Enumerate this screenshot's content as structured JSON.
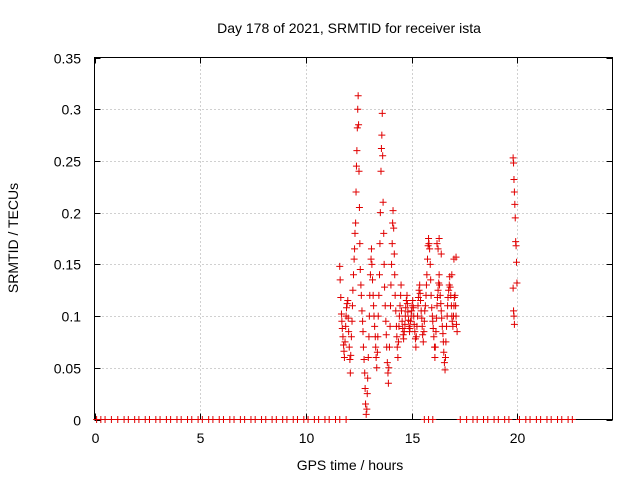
{
  "chart_data": {
    "type": "scatter",
    "title": "Day 178 of 2021, SRMTID for receiver ista",
    "xlabel": "GPS time / hours",
    "ylabel": "SRMTID / TECUs",
    "xlim": [
      0,
      24.5
    ],
    "ylim": [
      0,
      0.35
    ],
    "xticks": [
      0,
      5,
      10,
      15,
      20
    ],
    "xtick_labels": [
      "0",
      "5",
      "10",
      "15",
      "20"
    ],
    "yticks": [
      0,
      0.05,
      0.1,
      0.15,
      0.2,
      0.25,
      0.3,
      0.35
    ],
    "ytick_labels": [
      "0",
      "0.05",
      "0.1",
      "0.15",
      "0.2",
      "0.25",
      "0.3",
      "0.35"
    ],
    "grid": true,
    "marker": "+",
    "color": "#e00000",
    "series": [
      {
        "values": [
          [
            0.1,
            0
          ],
          [
            0.3,
            0
          ],
          [
            0.5,
            0
          ],
          [
            0.8,
            0
          ],
          [
            1.1,
            0
          ],
          [
            1.4,
            0
          ],
          [
            1.6,
            0
          ],
          [
            1.9,
            0
          ],
          [
            2.1,
            0
          ],
          [
            2.4,
            0
          ],
          [
            2.6,
            0
          ],
          [
            2.9,
            0
          ],
          [
            3.1,
            0
          ],
          [
            3.4,
            0
          ],
          [
            3.6,
            0
          ],
          [
            3.9,
            0
          ],
          [
            4.1,
            0
          ],
          [
            4.4,
            0
          ],
          [
            4.6,
            0
          ],
          [
            4.9,
            0
          ],
          [
            5.1,
            0
          ],
          [
            5.4,
            0
          ],
          [
            5.6,
            0
          ],
          [
            5.9,
            0
          ],
          [
            6.1,
            0
          ],
          [
            6.4,
            0
          ],
          [
            6.6,
            0
          ],
          [
            6.9,
            0
          ],
          [
            7.1,
            0
          ],
          [
            7.4,
            0
          ],
          [
            7.6,
            0
          ],
          [
            7.9,
            0
          ],
          [
            8.1,
            0
          ],
          [
            8.4,
            0
          ],
          [
            8.6,
            0
          ],
          [
            8.9,
            0
          ],
          [
            9.1,
            0
          ],
          [
            9.4,
            0
          ],
          [
            9.6,
            0
          ],
          [
            9.9,
            0
          ],
          [
            10.1,
            0
          ],
          [
            10.4,
            0
          ],
          [
            10.6,
            0
          ],
          [
            10.9,
            0
          ],
          [
            11.1,
            0
          ],
          [
            11.4,
            0
          ],
          [
            11.6,
            0
          ],
          [
            11.9,
            0
          ],
          [
            15.6,
            0
          ],
          [
            15.8,
            0
          ],
          [
            16.0,
            0
          ],
          [
            17.3,
            0
          ],
          [
            17.6,
            0
          ],
          [
            17.9,
            0
          ],
          [
            18.1,
            0
          ],
          [
            18.4,
            0
          ],
          [
            18.6,
            0
          ],
          [
            18.9,
            0
          ],
          [
            19.1,
            0
          ],
          [
            19.4,
            0
          ],
          [
            19.6,
            0
          ],
          [
            20.1,
            0
          ],
          [
            20.4,
            0
          ],
          [
            20.6,
            0
          ],
          [
            20.9,
            0
          ],
          [
            21.1,
            0
          ],
          [
            21.4,
            0
          ],
          [
            21.6,
            0
          ],
          [
            21.9,
            0
          ],
          [
            22.1,
            0
          ],
          [
            22.4,
            0
          ],
          [
            22.6,
            0
          ],
          [
            11.6,
            0.148
          ],
          [
            11.62,
            0.135
          ],
          [
            11.65,
            0.118
          ],
          [
            11.68,
            0.102
          ],
          [
            11.7,
            0.095
          ],
          [
            11.72,
            0.088
          ],
          [
            11.75,
            0.08
          ],
          [
            11.78,
            0.072
          ],
          [
            11.8,
            0.066
          ],
          [
            11.82,
            0.06
          ],
          [
            11.85,
            0.075
          ],
          [
            11.88,
            0.09
          ],
          [
            11.9,
            0.1
          ],
          [
            11.92,
            0.108
          ],
          [
            11.95,
            0.112
          ],
          [
            11.98,
            0.115
          ],
          [
            12.0,
            0.098
          ],
          [
            12.02,
            0.085
          ],
          [
            12.05,
            0.07
          ],
          [
            12.08,
            0.058
          ],
          [
            12.1,
            0.045
          ],
          [
            12.12,
            0.062
          ],
          [
            12.15,
            0.08
          ],
          [
            12.18,
            0.095
          ],
          [
            12.2,
            0.11
          ],
          [
            12.22,
            0.125
          ],
          [
            12.25,
            0.14
          ],
          [
            12.28,
            0.155
          ],
          [
            12.3,
            0.165
          ],
          [
            12.32,
            0.18
          ],
          [
            12.35,
            0.19
          ],
          [
            12.37,
            0.22
          ],
          [
            12.39,
            0.245
          ],
          [
            12.41,
            0.26
          ],
          [
            12.43,
            0.282
          ],
          [
            12.45,
            0.3
          ],
          [
            12.47,
            0.313
          ],
          [
            12.49,
            0.285
          ],
          [
            12.51,
            0.24
          ],
          [
            12.53,
            0.205
          ],
          [
            12.55,
            0.17
          ],
          [
            12.57,
            0.145
          ],
          [
            12.6,
            0.13
          ],
          [
            12.62,
            0.12
          ],
          [
            12.65,
            0.105
          ],
          [
            12.68,
            0.095
          ],
          [
            12.7,
            0.085
          ],
          [
            12.72,
            0.07
          ],
          [
            12.75,
            0.058
          ],
          [
            12.78,
            0.045
          ],
          [
            12.8,
            0.03
          ],
          [
            12.82,
            0.015
          ],
          [
            12.85,
            0.005
          ],
          [
            12.88,
            0.01
          ],
          [
            12.9,
            0.025
          ],
          [
            12.92,
            0.04
          ],
          [
            12.95,
            0.06
          ],
          [
            12.98,
            0.08
          ],
          [
            13.0,
            0.1
          ],
          [
            13.02,
            0.12
          ],
          [
            13.05,
            0.14
          ],
          [
            13.08,
            0.155
          ],
          [
            13.1,
            0.165
          ],
          [
            13.12,
            0.15
          ],
          [
            13.15,
            0.135
          ],
          [
            13.18,
            0.12
          ],
          [
            13.2,
            0.11
          ],
          [
            13.22,
            0.1
          ],
          [
            13.25,
            0.09
          ],
          [
            13.28,
            0.08
          ],
          [
            13.3,
            0.07
          ],
          [
            13.32,
            0.06
          ],
          [
            13.35,
            0.05
          ],
          [
            13.38,
            0.065
          ],
          [
            13.4,
            0.08
          ],
          [
            13.42,
            0.1
          ],
          [
            13.45,
            0.12
          ],
          [
            13.48,
            0.14
          ],
          [
            13.5,
            0.17
          ],
          [
            13.52,
            0.2
          ],
          [
            13.55,
            0.24
          ],
          [
            13.57,
            0.262
          ],
          [
            13.59,
            0.275
          ],
          [
            13.61,
            0.296
          ],
          [
            13.63,
            0.255
          ],
          [
            13.65,
            0.21
          ],
          [
            13.68,
            0.18
          ],
          [
            13.7,
            0.15
          ],
          [
            13.72,
            0.128
          ],
          [
            13.75,
            0.11
          ],
          [
            13.78,
            0.095
          ],
          [
            13.8,
            0.082
          ],
          [
            13.82,
            0.07
          ],
          [
            13.85,
            0.055
          ],
          [
            13.88,
            0.045
          ],
          [
            13.9,
            0.035
          ],
          [
            13.92,
            0.05
          ],
          [
            13.95,
            0.07
          ],
          [
            13.98,
            0.09
          ],
          [
            14.0,
            0.11
          ],
          [
            14.02,
            0.13
          ],
          [
            14.05,
            0.15
          ],
          [
            14.08,
            0.17
          ],
          [
            14.1,
            0.19
          ],
          [
            14.12,
            0.202
          ],
          [
            14.15,
            0.185
          ],
          [
            14.18,
            0.16
          ],
          [
            14.2,
            0.14
          ],
          [
            14.22,
            0.12
          ],
          [
            14.25,
            0.105
          ],
          [
            14.28,
            0.09
          ],
          [
            14.3,
            0.08
          ],
          [
            14.32,
            0.07
          ],
          [
            14.35,
            0.06
          ],
          [
            14.38,
            0.075
          ],
          [
            14.4,
            0.09
          ],
          [
            14.42,
            0.1
          ],
          [
            14.45,
            0.11
          ],
          [
            14.48,
            0.12
          ],
          [
            14.5,
            0.13
          ],
          [
            14.52,
            0.105
          ],
          [
            14.55,
            0.095
          ],
          [
            14.58,
            0.088
          ],
          [
            14.6,
            0.082
          ],
          [
            14.62,
            0.078
          ],
          [
            14.65,
            0.085
          ],
          [
            14.68,
            0.092
          ],
          [
            14.7,
            0.1
          ],
          [
            14.72,
            0.108
          ],
          [
            14.75,
            0.115
          ],
          [
            14.78,
            0.12
          ],
          [
            14.8,
            0.112
          ],
          [
            14.82,
            0.104
          ],
          [
            14.85,
            0.096
          ],
          [
            14.88,
            0.09
          ],
          [
            14.9,
            0.085
          ],
          [
            14.92,
            0.088
          ],
          [
            14.95,
            0.095
          ],
          [
            14.98,
            0.1
          ],
          [
            15.0,
            0.105
          ],
          [
            15.02,
            0.11
          ],
          [
            15.05,
            0.115
          ],
          [
            15.08,
            0.108
          ],
          [
            15.1,
            0.1
          ],
          [
            15.12,
            0.092
          ],
          [
            15.15,
            0.085
          ],
          [
            15.18,
            0.078
          ],
          [
            15.2,
            0.07
          ],
          [
            15.22,
            0.08
          ],
          [
            15.25,
            0.09
          ],
          [
            15.28,
            0.1
          ],
          [
            15.3,
            0.11
          ],
          [
            15.32,
            0.118
          ],
          [
            15.35,
            0.125
          ],
          [
            15.38,
            0.13
          ],
          [
            15.4,
            0.122
          ],
          [
            15.42,
            0.115
          ],
          [
            15.45,
            0.105
          ],
          [
            15.48,
            0.098
          ],
          [
            15.5,
            0.09
          ],
          [
            15.52,
            0.082
          ],
          [
            15.55,
            0.075
          ],
          [
            15.58,
            0.085
          ],
          [
            15.6,
            0.095
          ],
          [
            15.62,
            0.105
          ],
          [
            15.65,
            0.11
          ],
          [
            15.68,
            0.12
          ],
          [
            15.7,
            0.13
          ],
          [
            15.72,
            0.14
          ],
          [
            15.75,
            0.155
          ],
          [
            15.78,
            0.168
          ],
          [
            15.8,
            0.175
          ],
          [
            15.82,
            0.17
          ],
          [
            15.85,
            0.165
          ],
          [
            15.88,
            0.15
          ],
          [
            15.9,
            0.135
          ],
          [
            15.92,
            0.12
          ],
          [
            15.95,
            0.108
          ],
          [
            15.98,
            0.1
          ],
          [
            16.0,
            0.095
          ],
          [
            16.02,
            0.088
          ],
          [
            16.05,
            0.08
          ],
          [
            16.08,
            0.07
          ],
          [
            16.1,
            0.06
          ],
          [
            16.12,
            0.07
          ],
          [
            16.15,
            0.085
          ],
          [
            16.18,
            0.098
          ],
          [
            16.2,
            0.11
          ],
          [
            16.22,
            0.118
          ],
          [
            16.25,
            0.125
          ],
          [
            16.28,
            0.132
          ],
          [
            16.3,
            0.14
          ],
          [
            16.32,
            0.13
          ],
          [
            16.35,
            0.12
          ],
          [
            16.38,
            0.112
          ],
          [
            16.4,
            0.105
          ],
          [
            16.42,
            0.098
          ],
          [
            16.45,
            0.09
          ],
          [
            16.48,
            0.083
          ],
          [
            16.5,
            0.075
          ],
          [
            16.52,
            0.065
          ],
          [
            16.55,
            0.055
          ],
          [
            16.58,
            0.048
          ],
          [
            16.6,
            0.06
          ],
          [
            16.62,
            0.075
          ],
          [
            16.65,
            0.09
          ],
          [
            16.68,
            0.1
          ],
          [
            16.7,
            0.11
          ],
          [
            16.72,
            0.118
          ],
          [
            16.75,
            0.125
          ],
          [
            16.78,
            0.13
          ],
          [
            16.8,
            0.138
          ],
          [
            16.82,
            0.128
          ],
          [
            16.85,
            0.12
          ],
          [
            16.88,
            0.11
          ],
          [
            16.9,
            0.1
          ],
          [
            16.92,
            0.095
          ],
          [
            16.95,
            0.09
          ],
          [
            16.98,
            0.1
          ],
          [
            17.0,
            0.11
          ],
          [
            17.02,
            0.118
          ],
          [
            17.05,
            0.12
          ],
          [
            17.08,
            0.11
          ],
          [
            17.1,
            0.1
          ],
          [
            17.12,
            0.092
          ],
          [
            17.15,
            0.085
          ],
          [
            16.2,
            0.17
          ],
          [
            16.25,
            0.165
          ],
          [
            16.3,
            0.175
          ],
          [
            16.4,
            0.16
          ],
          [
            17.0,
            0.155
          ],
          [
            17.1,
            0.157
          ],
          [
            16.9,
            0.14
          ],
          [
            19.8,
            0.253
          ],
          [
            19.82,
            0.248
          ],
          [
            19.84,
            0.232
          ],
          [
            19.86,
            0.22
          ],
          [
            19.88,
            0.208
          ],
          [
            19.9,
            0.195
          ],
          [
            19.92,
            0.172
          ],
          [
            19.94,
            0.168
          ],
          [
            19.96,
            0.152
          ],
          [
            19.98,
            0.132
          ],
          [
            19.8,
            0.127
          ],
          [
            19.82,
            0.105
          ],
          [
            19.84,
            0.1
          ],
          [
            19.86,
            0.092
          ]
        ]
      }
    ]
  }
}
